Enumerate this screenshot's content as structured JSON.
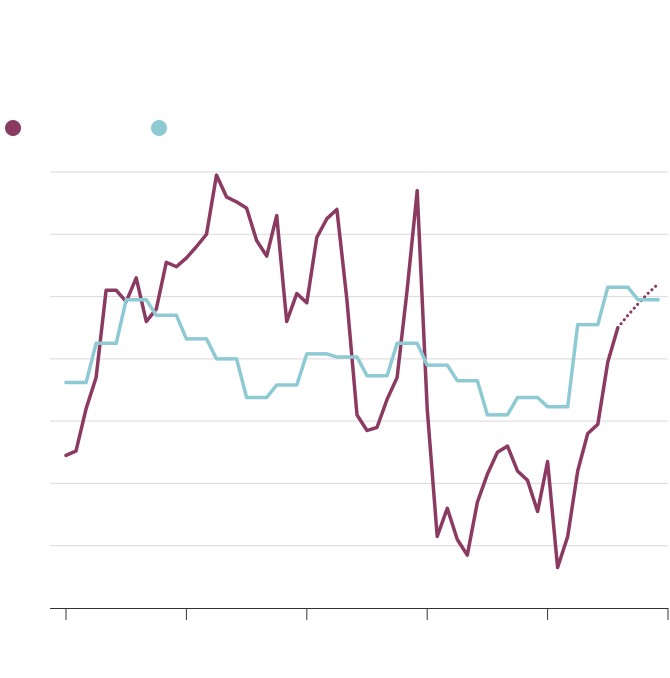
{
  "colors": {
    "series1": "#8b3a62",
    "series2": "#8ecad4",
    "grid": "#d9d9d9",
    "axis": "#333333"
  },
  "legend": {
    "items": [
      {
        "color": "#8b3a62",
        "label": ""
      },
      {
        "color": "#8ecad4",
        "label": ""
      }
    ]
  },
  "chart_data": {
    "type": "line",
    "title": "",
    "xlabel": "",
    "ylabel": "",
    "x_range": [
      0,
      60
    ],
    "y_range": [
      0,
      7
    ],
    "grid": true,
    "legend_position": "top-left",
    "x_ticks": [
      0,
      12,
      24,
      36,
      48,
      60
    ],
    "series": [
      {
        "color": "#8b3a62",
        "style": "solid",
        "values": [
          [
            0,
            2.45
          ],
          [
            1,
            2.52
          ],
          [
            2,
            3.2
          ],
          [
            3,
            3.7
          ],
          [
            4,
            5.1
          ],
          [
            5,
            5.1
          ],
          [
            6,
            4.92
          ],
          [
            7,
            5.3
          ],
          [
            8,
            4.6
          ],
          [
            9,
            4.8
          ],
          [
            10,
            5.55
          ],
          [
            11,
            5.48
          ],
          [
            12,
            5.62
          ],
          [
            13,
            5.8
          ],
          [
            14,
            6.0
          ],
          [
            15,
            6.95
          ],
          [
            16,
            6.6
          ],
          [
            17,
            6.52
          ],
          [
            18,
            6.42
          ],
          [
            19,
            5.9
          ],
          [
            20,
            5.65
          ],
          [
            21,
            6.3
          ],
          [
            22,
            4.6
          ],
          [
            23,
            5.05
          ],
          [
            24,
            4.9
          ],
          [
            25,
            5.95
          ],
          [
            26,
            6.25
          ],
          [
            27,
            6.4
          ],
          [
            28,
            4.95
          ],
          [
            29,
            3.1
          ],
          [
            30,
            2.85
          ],
          [
            31,
            2.9
          ],
          [
            32,
            3.35
          ],
          [
            33,
            3.7
          ],
          [
            34,
            5.1
          ],
          [
            35,
            6.7
          ],
          [
            36,
            3.2
          ],
          [
            37,
            1.15
          ],
          [
            38,
            1.6
          ],
          [
            39,
            1.1
          ],
          [
            40,
            0.85
          ],
          [
            41,
            1.7
          ],
          [
            42,
            2.15
          ],
          [
            43,
            2.5
          ],
          [
            44,
            2.6
          ],
          [
            45,
            2.2
          ],
          [
            46,
            2.05
          ],
          [
            47,
            1.55
          ],
          [
            48,
            2.35
          ],
          [
            49,
            0.65
          ],
          [
            50,
            1.15
          ],
          [
            51,
            2.2
          ],
          [
            52,
            2.8
          ],
          [
            53,
            2.95
          ],
          [
            54,
            3.95
          ],
          [
            55,
            4.5
          ]
        ]
      },
      {
        "color": "#8b3a62",
        "style": "dotted",
        "values": [
          [
            55,
            4.5
          ],
          [
            56,
            4.7
          ],
          [
            57,
            4.88
          ],
          [
            58,
            5.05
          ],
          [
            59,
            5.2
          ]
        ]
      },
      {
        "color": "#8ecad4",
        "style": "solid",
        "values": [
          [
            0,
            3.62
          ],
          [
            2,
            3.62
          ],
          [
            3,
            4.25
          ],
          [
            5,
            4.25
          ],
          [
            6,
            4.95
          ],
          [
            8,
            4.95
          ],
          [
            9,
            4.7
          ],
          [
            11,
            4.7
          ],
          [
            12,
            4.32
          ],
          [
            14,
            4.32
          ],
          [
            15,
            4.0
          ],
          [
            17,
            4.0
          ],
          [
            18,
            3.38
          ],
          [
            20,
            3.38
          ],
          [
            21,
            3.58
          ],
          [
            23,
            3.58
          ],
          [
            24,
            4.08
          ],
          [
            26,
            4.08
          ],
          [
            27,
            4.03
          ],
          [
            29,
            4.03
          ],
          [
            30,
            3.73
          ],
          [
            32,
            3.73
          ],
          [
            33,
            4.25
          ],
          [
            35,
            4.25
          ],
          [
            36,
            3.9
          ],
          [
            38,
            3.9
          ],
          [
            39,
            3.65
          ],
          [
            41,
            3.65
          ],
          [
            42,
            3.1
          ],
          [
            44,
            3.1
          ],
          [
            45,
            3.38
          ],
          [
            47,
            3.38
          ],
          [
            48,
            3.23
          ],
          [
            50,
            3.23
          ],
          [
            51,
            4.55
          ],
          [
            53,
            4.55
          ],
          [
            54,
            5.15
          ],
          [
            56,
            5.15
          ],
          [
            57,
            4.95
          ],
          [
            59,
            4.95
          ]
        ]
      }
    ]
  }
}
